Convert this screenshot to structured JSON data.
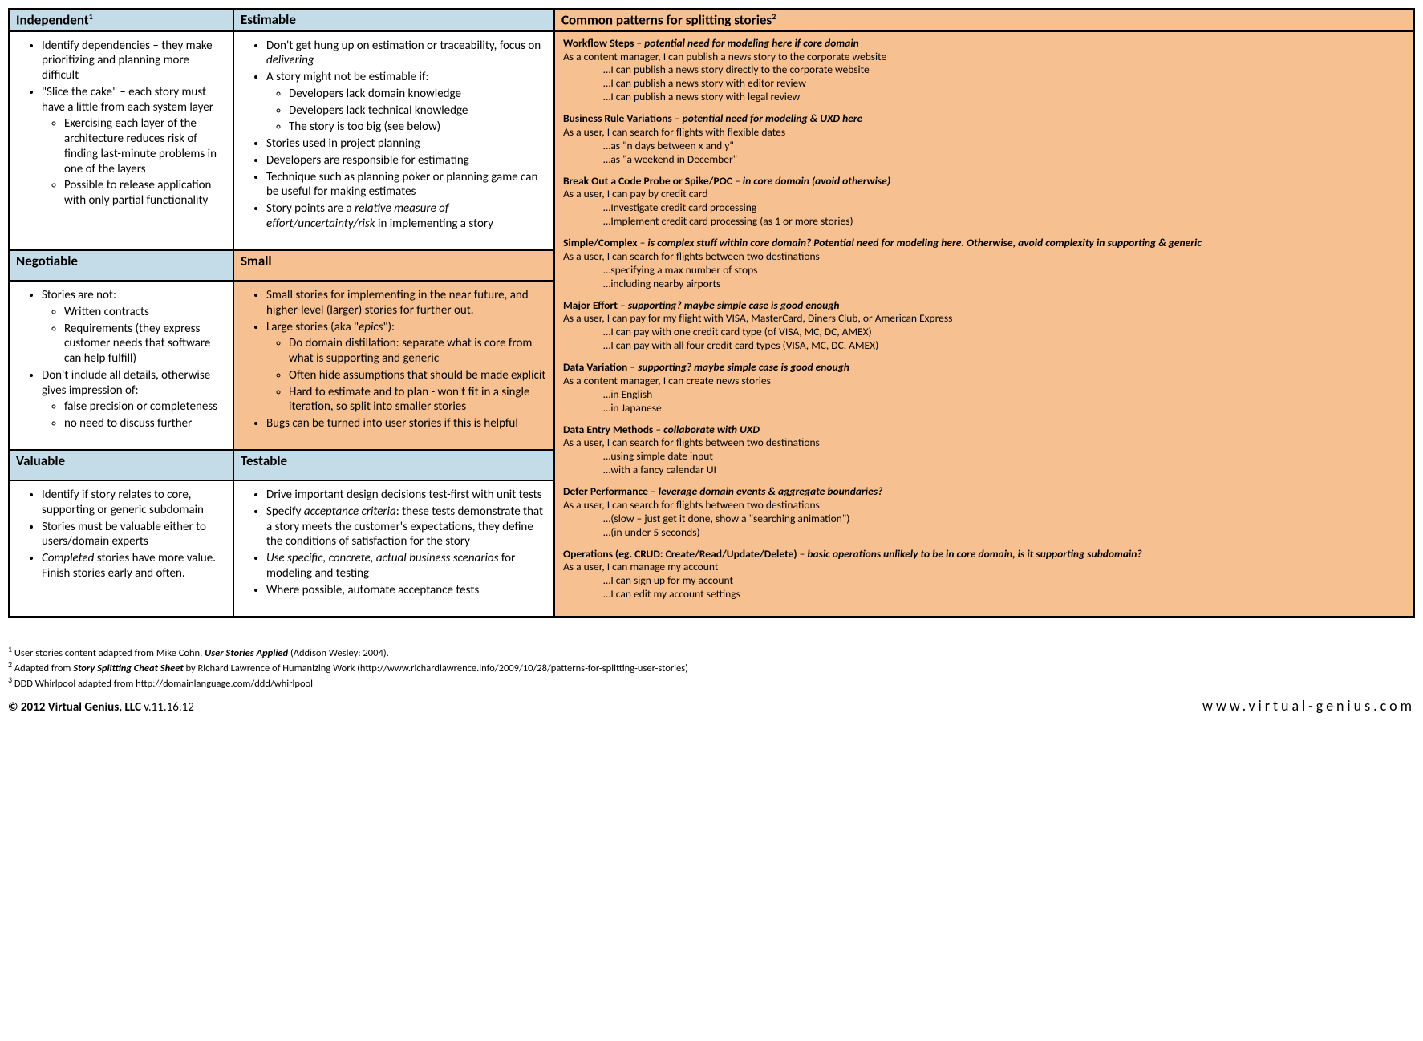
{
  "colors": {
    "blue_header": "#c3dce8",
    "orange": "#f6c090",
    "border": "#000000",
    "background": "#ffffff",
    "text": "#000000"
  },
  "typography": {
    "body_font": "Calibri",
    "body_size_pt": 11,
    "header_size_pt": 13,
    "pattern_size_pt": 10
  },
  "layout": {
    "columns": [
      "280px",
      "400px",
      "1fr"
    ],
    "left_rows": [
      "Independent",
      "Negotiable",
      "Valuable"
    ],
    "mid_rows": [
      "Estimable",
      "Small",
      "Testable"
    ],
    "right_span_rows": 5
  },
  "headers": {
    "independent": "Independent",
    "independent_sup": "1",
    "estimable": "Estimable",
    "patterns": "Common patterns for splitting stories",
    "patterns_sup": "2",
    "negotiable": "Negotiable",
    "small": "Small",
    "valuable": "Valuable",
    "testable": "Testable"
  },
  "independent": {
    "b1": "Identify dependencies – they make prioritizing and planning more difficult",
    "b2": " \"Slice the cake\" – each story must have a little from each system layer",
    "b2a": "Exercising each layer of the architecture reduces risk of finding last-minute problems in one of the layers",
    "b2b": "Possible to release application with only partial functionality"
  },
  "estimable": {
    "b1a": "Don't get hung up on estimation or traceability, focus on ",
    "b1b": "delivering",
    "b2": "A story might not be estimable if:",
    "b2a": "Developers lack domain knowledge",
    "b2b": "Developers lack technical knowledge",
    "b2c": "The story is too big (see below)",
    "b3": "Stories used in project planning",
    "b4": "Developers are responsible for estimating",
    "b5": "Technique such as planning poker or planning game can be useful for making estimates",
    "b6a": "Story points are a ",
    "b6b": "relative measure of effort/uncertainty/risk",
    "b6c": " in implementing a story"
  },
  "negotiable": {
    "b1": "Stories are not:",
    "b1a": "Written contracts",
    "b1b": "Requirements (they express customer needs that software can help fulfill)",
    "b2": "Don't include all details, otherwise gives impression of:",
    "b2a": "false precision or completeness",
    "b2b": "no need to discuss further"
  },
  "small": {
    "b1": "Small stories for implementing in the near future, and higher-level (larger) stories for further out.",
    "b2a": "Large stories (aka \"",
    "b2b": "epics",
    "b2c": "\"):",
    "b2s1": "Do domain distillation: separate what is core from what is supporting and generic",
    "b2s2": "Often hide assumptions that should be made explicit",
    "b2s3": "Hard to estimate and to plan - won't fit in a single iteration, so split into smaller stories",
    "b3": "Bugs can be turned into user stories if this is helpful"
  },
  "valuable": {
    "b1": "Identify if story relates to core, supporting or generic subdomain",
    "b2": "Stories must be valuable either to users/domain experts",
    "b3a": "Completed",
    "b3b": " stories have more value. Finish stories early and often."
  },
  "testable": {
    "b1": "Drive important design decisions test-first with unit tests",
    "b2a": "Specify ",
    "b2b": "acceptance criteria",
    "b2c": ": these tests demonstrate that a story meets the customer's expectations, they define the conditions of satisfaction for the story",
    "b3": "Use specific, concrete, actual business scenarios",
    "b3b": " for modeling and testing",
    "b4": "Where possible, automate acceptance tests"
  },
  "patterns": {
    "p1": {
      "title": "Workflow Steps",
      "note": "potential need for modeling here if core domain",
      "lead": "As a content manager, I can publish a news story to the corporate website",
      "items": [
        "…I can publish a news story directly to the corporate website",
        "…I can publish a news story with editor review",
        "…I can publish a news story with legal review"
      ]
    },
    "p2": {
      "title": "Business Rule Variations",
      "note": "potential need for modeling & UXD here",
      "lead": "As a user, I can search for flights with flexible dates",
      "items": [
        "…as \"n days between x and y\"",
        "…as \"a weekend in December\""
      ]
    },
    "p3": {
      "title": "Break Out a Code Probe or Spike/POC",
      "note": "in core domain (avoid otherwise)",
      "lead": "As a user, I can pay by credit card",
      "items": [
        "…Investigate credit card processing",
        "…Implement credit card processing (as 1 or more stories)"
      ]
    },
    "p4": {
      "title": "Simple/Complex",
      "note": "is complex stuff within core domain? Potential need for modeling here. Otherwise, avoid complexity in supporting & generic",
      "lead": "As a user, I can search for flights between two destinations",
      "items": [
        "…specifying a max number of stops",
        "…including nearby airports"
      ]
    },
    "p5": {
      "title": "Major Effort",
      "note": "supporting? maybe simple case is good enough",
      "lead": "As a user, I can pay for my flight with VISA, MasterCard, Diners Club, or American Express",
      "items": [
        "…I can pay with one credit card type (of VISA, MC, DC, AMEX)",
        "…I can pay with all four credit card types (VISA, MC, DC, AMEX)"
      ]
    },
    "p6": {
      "title": "Data Variation",
      "note": "supporting? maybe simple case is good enough",
      "lead": "As a content manager, I can create news stories",
      "items": [
        "…in English",
        "…in Japanese"
      ]
    },
    "p7": {
      "title": "Data Entry Methods",
      "note": "collaborate with UXD",
      "lead": "As a user, I can search for flights between two destinations",
      "items": [
        "…using simple date input",
        "…with a fancy calendar UI"
      ]
    },
    "p8": {
      "title": "Defer Performance",
      "note": "leverage domain events & aggregate boundaries?",
      "lead": "As a user, I can search for flights between two destinations",
      "items": [
        "…(slow – just get it done, show a \"searching animation\")",
        "…(in under 5 seconds)"
      ]
    },
    "p9": {
      "title": "Operations (eg. CRUD: Create/Read/Update/Delete)",
      "note": "basic operations unlikely to be in core domain, is it supporting subdomain?",
      "lead": "As a user, I can manage my account",
      "items": [
        "…I can sign up for my account",
        "…I can edit my account settings"
      ]
    }
  },
  "footnotes": {
    "f1a": " User stories content adapted from Mike Cohn, ",
    "f1b": "User Stories Applied",
    "f1c": " (Addison Wesley: 2004).",
    "f2a": " Adapted from ",
    "f2b": "Story Splitting Cheat Sheet",
    "f2c": " by Richard Lawrence of Humanizing Work (http://www.richardlawrence.info/2009/10/28/patterns-for-splitting-user-stories)",
    "f3": " DDD Whirlpool adapted from http://domainlanguage.com/ddd/whirlpool"
  },
  "footer": {
    "copyright": "©  2012 Virtual Genius, LLC ",
    "version": "v.11.16.12",
    "site": "www.virtual-genius.com"
  }
}
